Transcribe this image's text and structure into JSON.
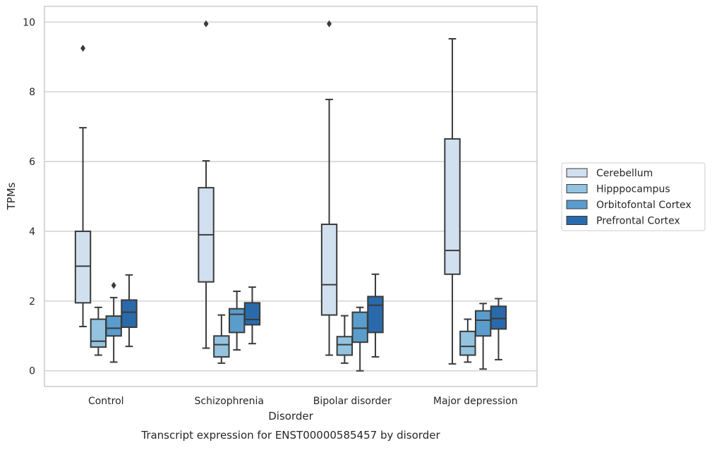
{
  "chart_data": {
    "type": "box",
    "title": "",
    "caption": "Transcript expression for ENST00000585457 by disorder",
    "xlabel": "Disorder",
    "ylabel": "TPMs",
    "ylim": [
      -0.45,
      10.45
    ],
    "yticks": [
      0,
      2,
      4,
      6,
      8,
      10
    ],
    "grid": "horizontal",
    "legend_position": "right",
    "categories": [
      "Control",
      "Schizophrenia",
      "Bipolar disorder",
      "Major depression"
    ],
    "series": [
      {
        "name": "Cerebellum",
        "color": "#d1e0ef",
        "boxes": [
          {
            "whislo": 1.27,
            "q1": 1.95,
            "med": 3.0,
            "q3": 4.0,
            "whishi": 6.97,
            "fliers": [
              9.25
            ]
          },
          {
            "whislo": 0.65,
            "q1": 2.55,
            "med": 3.9,
            "q3": 5.25,
            "whishi": 6.02,
            "fliers": [
              9.95
            ]
          },
          {
            "whislo": 0.45,
            "q1": 1.6,
            "med": 2.47,
            "q3": 4.2,
            "whishi": 7.78,
            "fliers": [
              9.95
            ]
          },
          {
            "whislo": 0.2,
            "q1": 2.77,
            "med": 3.45,
            "q3": 6.65,
            "whishi": 9.52,
            "fliers": []
          }
        ]
      },
      {
        "name": "Hipppocampus",
        "color": "#93c3df",
        "boxes": [
          {
            "whislo": 0.45,
            "q1": 0.68,
            "med": 0.85,
            "q3": 1.48,
            "whishi": 1.82,
            "fliers": []
          },
          {
            "whislo": 0.22,
            "q1": 0.4,
            "med": 0.75,
            "q3": 1.0,
            "whishi": 1.6,
            "fliers": []
          },
          {
            "whislo": 0.22,
            "q1": 0.45,
            "med": 0.75,
            "q3": 0.98,
            "whishi": 1.58,
            "fliers": []
          },
          {
            "whislo": 0.25,
            "q1": 0.45,
            "med": 0.7,
            "q3": 1.13,
            "whishi": 1.48,
            "fliers": []
          }
        ]
      },
      {
        "name": "Orbitofontal Cortex",
        "color": "#5a9ccb",
        "boxes": [
          {
            "whislo": 0.25,
            "q1": 1.0,
            "med": 1.22,
            "q3": 1.57,
            "whishi": 2.1,
            "fliers": [
              2.45
            ]
          },
          {
            "whislo": 0.6,
            "q1": 1.1,
            "med": 1.62,
            "q3": 1.78,
            "whishi": 2.28,
            "fliers": []
          },
          {
            "whislo": 0.0,
            "q1": 0.82,
            "med": 1.22,
            "q3": 1.68,
            "whishi": 1.82,
            "fliers": []
          },
          {
            "whislo": 0.05,
            "q1": 1.0,
            "med": 1.45,
            "q3": 1.72,
            "whishi": 1.93,
            "fliers": []
          }
        ]
      },
      {
        "name": "Prefrontal Cortex",
        "color": "#2a6aab",
        "boxes": [
          {
            "whislo": 0.7,
            "q1": 1.25,
            "med": 1.68,
            "q3": 2.03,
            "whishi": 2.75,
            "fliers": []
          },
          {
            "whislo": 0.78,
            "q1": 1.32,
            "med": 1.47,
            "q3": 1.95,
            "whishi": 2.4,
            "fliers": []
          },
          {
            "whislo": 0.4,
            "q1": 1.1,
            "med": 1.88,
            "q3": 2.13,
            "whishi": 2.77,
            "fliers": []
          },
          {
            "whislo": 0.32,
            "q1": 1.2,
            "med": 1.5,
            "q3": 1.85,
            "whishi": 2.07,
            "fliers": []
          }
        ]
      }
    ]
  }
}
